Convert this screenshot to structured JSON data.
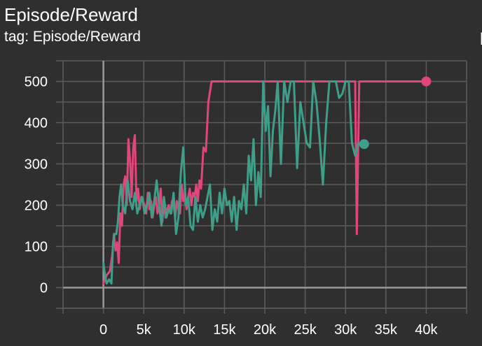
{
  "header": {
    "title": "Episode/Reward",
    "subtitle": "tag: Episode/Reward"
  },
  "colors": {
    "background": "#2f2f2f",
    "grid": "#5c5c5c",
    "axis": "#9a9a9a",
    "series_pink": "#e0457b",
    "series_teal": "#3f9e8a"
  },
  "chart_data": {
    "type": "line",
    "xlim": [
      -5000,
      45000
    ],
    "ylim": [
      -50,
      550
    ],
    "xticks": [
      0,
      5000,
      10000,
      15000,
      20000,
      25000,
      30000,
      35000,
      40000
    ],
    "xtick_labels": [
      "0",
      "5k",
      "10k",
      "15k",
      "20k",
      "25k",
      "30k",
      "35k",
      "40k"
    ],
    "yticks": [
      0,
      100,
      200,
      300,
      400,
      500
    ],
    "ytick_labels": [
      "0",
      "100",
      "200",
      "300",
      "400",
      "500"
    ],
    "grid": true,
    "legend": "none",
    "series": [
      {
        "color": "#e0457b",
        "x": [
          0,
          400,
          800,
          1100,
          1300,
          1500,
          1700,
          1900,
          2100,
          2300,
          2500,
          2700,
          2900,
          3100,
          3300,
          3500,
          3700,
          3900,
          4100,
          4300,
          4500,
          4700,
          4900,
          5100,
          5300,
          5500,
          5700,
          5900,
          6100,
          6300,
          6500,
          6700,
          6900,
          7100,
          7300,
          7500,
          7700,
          7900,
          8100,
          8300,
          8500,
          8700,
          8900,
          9100,
          9300,
          9500,
          9700,
          9900,
          10100,
          10300,
          10500,
          10700,
          10900,
          11100,
          11300,
          11500,
          11700,
          11900,
          12100,
          12400,
          12700,
          13000,
          13400,
          13800,
          14500,
          16000,
          18000,
          20000,
          22000,
          24000,
          26000,
          28000,
          30000,
          31200,
          31400,
          31700,
          32000,
          33000,
          36000,
          40000
        ],
        "y": [
          10,
          30,
          40,
          80,
          130,
          90,
          110,
          60,
          180,
          150,
          250,
          270,
          200,
          360,
          310,
          220,
          340,
          370,
          210,
          240,
          190,
          220,
          210,
          200,
          180,
          230,
          190,
          210,
          170,
          200,
          220,
          180,
          200,
          240,
          160,
          210,
          170,
          190,
          200,
          180,
          210,
          200,
          170,
          210,
          190,
          180,
          250,
          210,
          230,
          190,
          220,
          240,
          200,
          230,
          220,
          250,
          210,
          260,
          240,
          340,
          330,
          450,
          500,
          500,
          500,
          500,
          500,
          500,
          500,
          500,
          500,
          500,
          500,
          500,
          130,
          500,
          500,
          500,
          500,
          500
        ]
      },
      {
        "color": "#3f9e8a",
        "x": [
          0,
          200,
          400,
          700,
          1000,
          1200,
          1400,
          1600,
          1800,
          2000,
          2200,
          2400,
          2700,
          3000,
          3300,
          3600,
          3900,
          4200,
          4500,
          4800,
          5100,
          5400,
          5700,
          6000,
          6300,
          6600,
          6900,
          7200,
          7500,
          7800,
          8100,
          8400,
          8700,
          9000,
          9300,
          9600,
          9900,
          10200,
          10500,
          10800,
          11100,
          11400,
          11700,
          12000,
          12300,
          12600,
          12900,
          13200,
          13500,
          13800,
          14100,
          14400,
          14700,
          15000,
          15300,
          15600,
          15900,
          16200,
          16500,
          16800,
          17100,
          17400,
          17700,
          18000,
          18300,
          18600,
          18900,
          19200,
          19500,
          19800,
          20100,
          20400,
          20700,
          21000,
          21300,
          21600,
          22000,
          22400,
          22800,
          23200,
          23600,
          24000,
          24400,
          24800,
          25200,
          25600,
          26000,
          26400,
          26800,
          27200,
          27600,
          28000,
          28400,
          28800,
          29200,
          29600,
          30000,
          30400,
          30800,
          31200,
          31600,
          32000,
          32300
        ],
        "y": [
          60,
          30,
          10,
          20,
          10,
          110,
          130,
          130,
          160,
          220,
          250,
          200,
          180,
          260,
          210,
          190,
          230,
          180,
          200,
          220,
          180,
          200,
          230,
          170,
          210,
          260,
          200,
          150,
          220,
          170,
          190,
          180,
          230,
          130,
          170,
          280,
          340,
          200,
          220,
          150,
          140,
          220,
          160,
          200,
          170,
          190,
          220,
          250,
          140,
          190,
          160,
          230,
          180,
          240,
          200,
          210,
          160,
          220,
          140,
          210,
          190,
          250,
          180,
          320,
          260,
          360,
          200,
          280,
          220,
          500,
          380,
          440,
          270,
          380,
          430,
          500,
          300,
          500,
          450,
          500,
          500,
          290,
          450,
          400,
          350,
          340,
          500,
          450,
          360,
          250,
          400,
          500,
          500,
          500,
          460,
          470,
          500,
          500,
          350,
          320,
          350,
          345,
          348
        ]
      }
    ]
  }
}
